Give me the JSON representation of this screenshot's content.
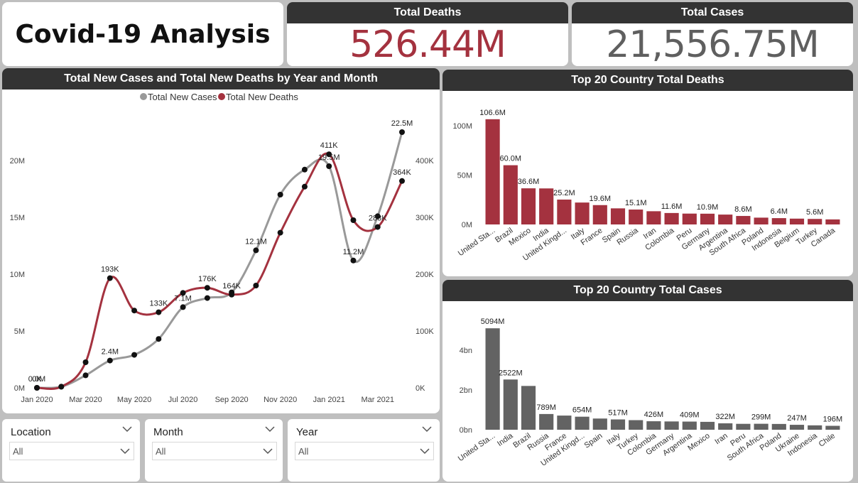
{
  "title": "Covid-19 Analysis",
  "kpis": {
    "deaths": {
      "label": "Total Deaths",
      "value": "526.44M",
      "color": "#a4323f"
    },
    "cases": {
      "label": "Total Cases",
      "value": "21,556.75M",
      "color": "#5f5f5f"
    }
  },
  "colors": {
    "cases": "#999999",
    "deaths": "#a4323f",
    "bar_cases": "#636363"
  },
  "slicers": [
    {
      "label": "Location",
      "value": "All"
    },
    {
      "label": "Month",
      "value": "All"
    },
    {
      "label": "Year",
      "value": "All"
    }
  ],
  "chart_data": [
    {
      "type": "line",
      "title": "Total New Cases and Total New Deaths by Year and Month",
      "legend_position": "top-center",
      "x": [
        "Jan 2020",
        "Feb 2020",
        "Mar 2020",
        "Apr 2020",
        "May 2020",
        "Jun 2020",
        "Jul 2020",
        "Aug 2020",
        "Sep 2020",
        "Oct 2020",
        "Nov 2020",
        "Dec 2020",
        "Jan 2021",
        "Feb 2021",
        "Mar 2021",
        "Apr 2021"
      ],
      "x_tick_labels": [
        "Jan 2020",
        "Mar 2020",
        "May 2020",
        "Jul 2020",
        "Sep 2020",
        "Nov 2020",
        "Jan 2021",
        "Mar 2021"
      ],
      "y_left": {
        "ticks": [
          0,
          5000000,
          10000000,
          15000000,
          20000000
        ],
        "tick_labels": [
          "0M",
          "5M",
          "10M",
          "15M",
          "20M"
        ],
        "range": [
          0,
          25000000
        ]
      },
      "y_right": {
        "ticks": [
          0,
          100000,
          200000,
          300000,
          400000
        ],
        "tick_labels": [
          "0K",
          "100K",
          "200K",
          "300K",
          "400K"
        ],
        "range": [
          0,
          500000
        ]
      },
      "series": [
        {
          "name": "Total New Cases",
          "axis": "left",
          "values": [
            0,
            100000,
            1100000,
            2400000,
            2900000,
            4300000,
            7100000,
            7900000,
            8400000,
            12100000,
            17000000,
            19200000,
            19500000,
            11200000,
            15100000,
            22500000
          ],
          "labels": [
            "0.0M",
            "",
            "",
            "2.4M",
            "",
            "",
            "7.1M",
            "",
            "",
            "12.1M",
            "",
            "",
            "19.5M",
            "11.2M",
            "",
            "22.5M"
          ]
        },
        {
          "name": "Total New Deaths",
          "axis": "right",
          "values": [
            0,
            2000,
            45000,
            193000,
            136000,
            133000,
            167000,
            176000,
            164000,
            180000,
            273000,
            354000,
            411000,
            295000,
            283000,
            364000
          ],
          "labels": [
            "0K",
            "",
            "",
            "193K",
            "",
            "133K",
            "",
            "176K",
            "164K",
            "",
            "",
            "",
            "411K",
            "",
            "283K",
            "364K"
          ]
        }
      ]
    },
    {
      "type": "bar",
      "title": "Top 20 Country Total Deaths",
      "categories": [
        "United Sta...",
        "Brazil",
        "Mexico",
        "India",
        "United Kingd...",
        "Italy",
        "France",
        "Spain",
        "Russia",
        "Iran",
        "Colombia",
        "Peru",
        "Germany",
        "Argentina",
        "South Africa",
        "Poland",
        "Indonesia",
        "Belgium",
        "Turkey",
        "Canada"
      ],
      "values": [
        106.6,
        60.0,
        36.6,
        36.5,
        25.2,
        22.2,
        19.6,
        16.3,
        15.1,
        13.4,
        11.6,
        11.0,
        10.9,
        10.0,
        8.6,
        6.9,
        6.4,
        5.9,
        5.6,
        5.1
      ],
      "data_labels": [
        "106.6M",
        "60.0M",
        "36.6M",
        "",
        "25.2M",
        "",
        "19.6M",
        "",
        "15.1M",
        "",
        "11.6M",
        "",
        "10.9M",
        "",
        "8.6M",
        "",
        "6.4M",
        "",
        "5.6M",
        ""
      ],
      "y_ticks": [
        0,
        50,
        100
      ],
      "y_tick_labels": [
        "0M",
        "50M",
        "100M"
      ],
      "ylim": [
        0,
        118
      ],
      "unit": "M"
    },
    {
      "type": "bar",
      "title": "Top 20 Country Total Cases",
      "categories": [
        "United Sta...",
        "India",
        "Brazil",
        "Russia",
        "France",
        "United Kingd...",
        "Spain",
        "Italy",
        "Turkey",
        "Colombia",
        "Germany",
        "Argentina",
        "Mexico",
        "Iran",
        "Peru",
        "South Africa",
        "Poland",
        "Ukraine",
        "Indonesia",
        "Chile"
      ],
      "values": [
        5094,
        2522,
        2199,
        789,
        711,
        654,
        562,
        517,
        481,
        426,
        416,
        409,
        396,
        322,
        296,
        299,
        290,
        247,
        220,
        196
      ],
      "data_labels": [
        "5094M",
        "2522M",
        "",
        "789M",
        "",
        "654M",
        "",
        "517M",
        "",
        "426M",
        "",
        "409M",
        "",
        "322M",
        "",
        "299M",
        "",
        "247M",
        "",
        "196M"
      ],
      "y_ticks": [
        0,
        2000,
        4000
      ],
      "y_tick_labels": [
        "0bn",
        "2bn",
        "4bn"
      ],
      "ylim": [
        0,
        5600
      ],
      "unit": "M"
    }
  ]
}
